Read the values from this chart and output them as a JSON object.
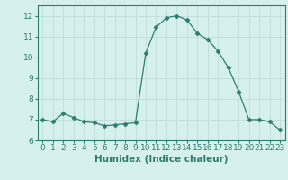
{
  "x": [
    0,
    1,
    2,
    3,
    4,
    5,
    6,
    7,
    8,
    9,
    10,
    11,
    12,
    13,
    14,
    15,
    16,
    17,
    18,
    19,
    20,
    21,
    22,
    23
  ],
  "y": [
    7.0,
    6.9,
    7.3,
    7.1,
    6.9,
    6.85,
    6.7,
    6.75,
    6.8,
    6.85,
    10.2,
    11.45,
    11.9,
    12.0,
    11.8,
    11.15,
    10.85,
    10.3,
    9.5,
    8.35,
    7.0,
    7.0,
    6.9,
    6.5
  ],
  "line_color": "#2d7d6e",
  "marker": "D",
  "marker_size": 2.5,
  "bg_color": "#d6f0ee",
  "grid_color": "#c0dedd",
  "xlabel": "Humidex (Indice chaleur)",
  "xlim": [
    -0.5,
    23.5
  ],
  "ylim": [
    6.0,
    12.5
  ],
  "yticks": [
    6,
    7,
    8,
    9,
    10,
    11,
    12
  ],
  "xticks": [
    0,
    1,
    2,
    3,
    4,
    5,
    6,
    7,
    8,
    9,
    10,
    11,
    12,
    13,
    14,
    15,
    16,
    17,
    18,
    19,
    20,
    21,
    22,
    23
  ],
  "tick_label_fontsize": 6.5,
  "xlabel_fontsize": 7.5
}
